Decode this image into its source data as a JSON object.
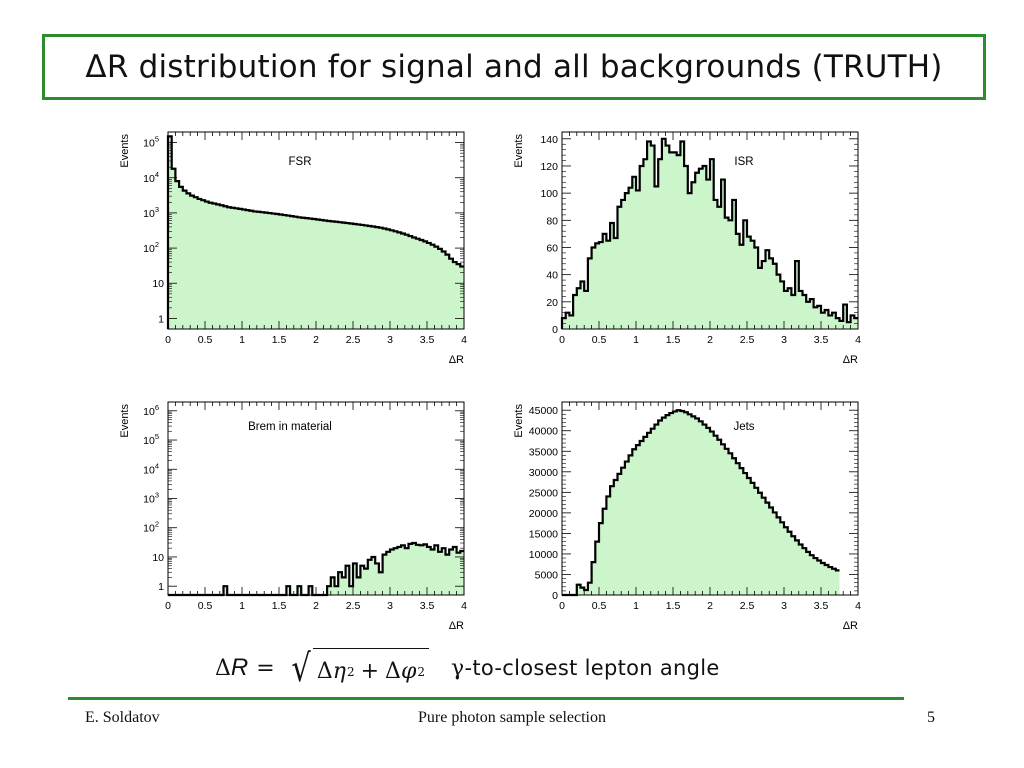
{
  "slide": {
    "title": "ΔR distribution for signal and all backgrounds (TRUTH)",
    "formula": {
      "lhs_delta": "Δ",
      "lhs_var": "R",
      "equals": "=",
      "term1_delta": "Δ",
      "term1_var": "η",
      "term1_exp": "2",
      "plus": "+",
      "term2_delta": "Δ",
      "term2_var": "φ",
      "term2_exp": "2"
    },
    "caption_symbol": "γ",
    "caption_text": "-to-closest lepton angle",
    "footer": {
      "author": "E. Soldatov",
      "center": "Pure photon sample selection",
      "page": "5"
    },
    "colors": {
      "frame_green": "#2e8b2e",
      "fill": "#ccf5cc",
      "line": "#000000"
    }
  },
  "chart_data": [
    {
      "type": "histogram",
      "label": "FSR",
      "xlabel": "ΔR",
      "ylabel": "Events",
      "log_y": true,
      "xlim": [
        0,
        4
      ],
      "ylim": [
        0.5,
        200000
      ],
      "xticks": [
        "0",
        "0.5",
        "1",
        "1.5",
        "2",
        "2.5",
        "3",
        "3.5",
        "4"
      ],
      "yticks": [
        {
          "v": 1,
          "base": "1",
          "exp": ""
        },
        {
          "v": 10,
          "base": "10",
          "exp": ""
        },
        {
          "v": 100,
          "base": "10",
          "exp": "2"
        },
        {
          "v": 1000,
          "base": "10",
          "exp": "3"
        },
        {
          "v": 10000,
          "base": "10",
          "exp": "4"
        },
        {
          "v": 100000,
          "base": "10",
          "exp": "5"
        }
      ],
      "bin_width": 0.05,
      "values": [
        150000,
        18000,
        8000,
        5500,
        4300,
        3600,
        3100,
        2800,
        2500,
        2300,
        2100,
        1950,
        1850,
        1750,
        1650,
        1550,
        1450,
        1400,
        1350,
        1300,
        1250,
        1200,
        1150,
        1100,
        1080,
        1050,
        1020,
        990,
        960,
        930,
        900,
        870,
        840,
        810,
        780,
        750,
        730,
        710,
        690,
        670,
        650,
        630,
        610,
        590,
        575,
        560,
        545,
        530,
        515,
        500,
        485,
        470,
        455,
        440,
        425,
        410,
        395,
        380,
        360,
        340,
        320,
        300,
        280,
        260,
        240,
        220,
        200,
        185,
        170,
        155,
        140,
        125,
        110,
        95,
        80,
        65,
        50,
        40,
        35,
        30
      ]
    },
    {
      "type": "histogram",
      "label": "ISR",
      "xlabel": "ΔR",
      "ylabel": "Events",
      "log_y": false,
      "xlim": [
        0,
        4
      ],
      "ylim": [
        0,
        145
      ],
      "xticks": [
        "0",
        "0.5",
        "1",
        "1.5",
        "2",
        "2.5",
        "3",
        "3.5",
        "4"
      ],
      "yticks": [
        {
          "v": 0,
          "base": "0",
          "exp": ""
        },
        {
          "v": 20,
          "base": "20",
          "exp": ""
        },
        {
          "v": 40,
          "base": "40",
          "exp": ""
        },
        {
          "v": 60,
          "base": "60",
          "exp": ""
        },
        {
          "v": 80,
          "base": "80",
          "exp": ""
        },
        {
          "v": 100,
          "base": "100",
          "exp": ""
        },
        {
          "v": 120,
          "base": "120",
          "exp": ""
        },
        {
          "v": 140,
          "base": "140",
          "exp": ""
        }
      ],
      "bin_width": 0.05,
      "values": [
        8,
        12,
        10,
        25,
        30,
        35,
        28,
        52,
        60,
        63,
        64,
        70,
        65,
        78,
        67,
        90,
        95,
        100,
        104,
        112,
        102,
        120,
        125,
        138,
        135,
        105,
        125,
        140,
        135,
        130,
        130,
        128,
        138,
        120,
        100,
        108,
        115,
        118,
        120,
        110,
        125,
        95,
        90,
        110,
        82,
        80,
        95,
        70,
        62,
        80,
        68,
        65,
        60,
        45,
        50,
        58,
        52,
        48,
        40,
        35,
        28,
        30,
        25,
        50,
        28,
        25,
        20,
        22,
        16,
        17,
        12,
        14,
        10,
        12,
        8,
        6,
        18,
        5,
        10,
        8
      ]
    },
    {
      "type": "histogram",
      "label": "Brem in material",
      "xlabel": "ΔR",
      "ylabel": "Events",
      "log_y": true,
      "xlim": [
        0,
        4
      ],
      "ylim": [
        0.5,
        2000000
      ],
      "xticks": [
        "0",
        "0.5",
        "1",
        "1.5",
        "2",
        "2.5",
        "3",
        "3.5",
        "4"
      ],
      "yticks": [
        {
          "v": 1,
          "base": "1",
          "exp": ""
        },
        {
          "v": 10,
          "base": "10",
          "exp": ""
        },
        {
          "v": 100,
          "base": "10",
          "exp": "2"
        },
        {
          "v": 1000,
          "base": "10",
          "exp": "3"
        },
        {
          "v": 10000,
          "base": "10",
          "exp": "4"
        },
        {
          "v": 100000,
          "base": "10",
          "exp": "5"
        },
        {
          "v": 1000000,
          "base": "10",
          "exp": "6"
        }
      ],
      "bin_width": 0.05,
      "values": [
        0,
        0,
        0,
        0,
        0,
        0,
        0,
        0,
        0,
        0,
        0,
        0,
        0,
        0,
        0,
        1,
        0,
        0,
        0,
        0,
        0,
        0,
        0,
        0,
        0,
        0,
        0,
        0,
        0,
        0,
        0,
        0,
        1,
        0,
        0,
        1,
        0,
        0,
        1,
        0,
        0,
        0,
        0,
        1,
        2,
        1,
        3,
        2,
        5,
        1,
        6,
        2,
        5,
        4,
        8,
        10,
        6,
        3,
        12,
        15,
        18,
        20,
        22,
        25,
        20,
        28,
        30,
        26,
        25,
        27,
        22,
        18,
        25,
        15,
        20,
        12,
        18,
        22,
        14,
        16
      ]
    },
    {
      "type": "histogram",
      "label": "Jets",
      "xlabel": "ΔR",
      "ylabel": "Events",
      "log_y": false,
      "xlim": [
        0,
        4
      ],
      "ylim": [
        0,
        47000
      ],
      "xticks": [
        "0",
        "0.5",
        "1",
        "1.5",
        "2",
        "2.5",
        "3",
        "3.5",
        "4"
      ],
      "yticks": [
        {
          "v": 0,
          "base": "0",
          "exp": ""
        },
        {
          "v": 5000,
          "base": "5000",
          "exp": ""
        },
        {
          "v": 10000,
          "base": "10000",
          "exp": ""
        },
        {
          "v": 15000,
          "base": "15000",
          "exp": ""
        },
        {
          "v": 20000,
          "base": "20000",
          "exp": ""
        },
        {
          "v": 25000,
          "base": "25000",
          "exp": ""
        },
        {
          "v": 30000,
          "base": "30000",
          "exp": ""
        },
        {
          "v": 35000,
          "base": "35000",
          "exp": ""
        },
        {
          "v": 40000,
          "base": "40000",
          "exp": ""
        },
        {
          "v": 45000,
          "base": "45000",
          "exp": ""
        }
      ],
      "bin_width": 0.05,
      "values": [
        0,
        0,
        0,
        0,
        2500,
        1800,
        1200,
        3000,
        8000,
        13000,
        17500,
        21000,
        24000,
        26500,
        28000,
        29500,
        31000,
        32500,
        34000,
        35500,
        36500,
        37500,
        38500,
        39500,
        40500,
        41500,
        42500,
        43200,
        43800,
        44300,
        44700,
        45000,
        44800,
        44500,
        44000,
        43500,
        43000,
        42300,
        41500,
        40700,
        39800,
        38800,
        37800,
        36700,
        35600,
        34500,
        33300,
        32100,
        30900,
        29700,
        28500,
        27300,
        26100,
        24900,
        23700,
        22500,
        21300,
        20100,
        18900,
        17700,
        16500,
        15400,
        14300,
        13300,
        12300,
        11400,
        10500,
        9700,
        9000,
        8400,
        7800,
        7300,
        6800,
        6400,
        6000
      ]
    }
  ]
}
